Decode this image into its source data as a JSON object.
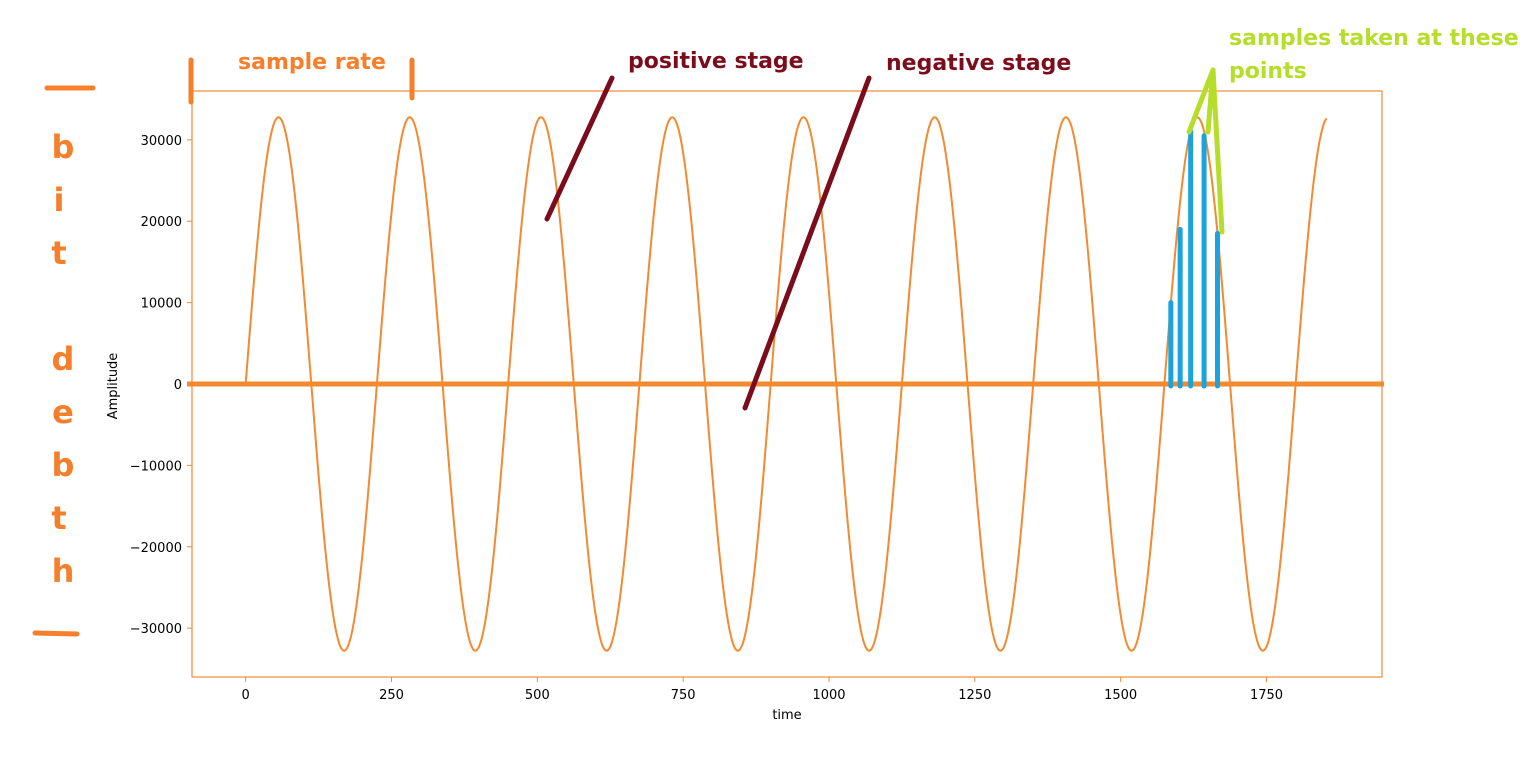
{
  "colors": {
    "wave": "#f28a32",
    "frame": "#f28a32",
    "annotation_orange": "#f57f2a",
    "annotation_red": "#7b0c1c",
    "annotation_green": "#b6dd2a",
    "samples": "#1aa3df"
  },
  "chart_data": {
    "type": "line",
    "title": "",
    "xlabel": "time",
    "ylabel": "Amplitude",
    "xlim": [
      -92,
      1948
    ],
    "ylim": [
      -36000,
      36000
    ],
    "xticks": [
      0,
      250,
      500,
      750,
      1000,
      1250,
      1500,
      1750
    ],
    "yticks": [
      30000,
      20000,
      10000,
      0,
      -10000,
      -20000,
      -30000
    ],
    "grid": false,
    "series": [
      {
        "function": "sine",
        "amplitude": 32767,
        "period": 225,
        "x_start": 0,
        "x_end": 1853
      }
    ],
    "zero_line": 0,
    "samples": {
      "x": [
        1586,
        1602,
        1620,
        1643,
        1666
      ],
      "y": [
        10000,
        19000,
        31000,
        30500,
        18500
      ]
    }
  },
  "annotations": {
    "sample_rate": "sample rate",
    "positive_stage": "positive stage",
    "negative_stage": "negative stage",
    "samples_taken_line1": "samples taken at these",
    "samples_taken_line2": "points",
    "bit_depth_letters": [
      "b",
      "i",
      "t",
      "d",
      "e",
      "b",
      "t",
      "h"
    ]
  }
}
